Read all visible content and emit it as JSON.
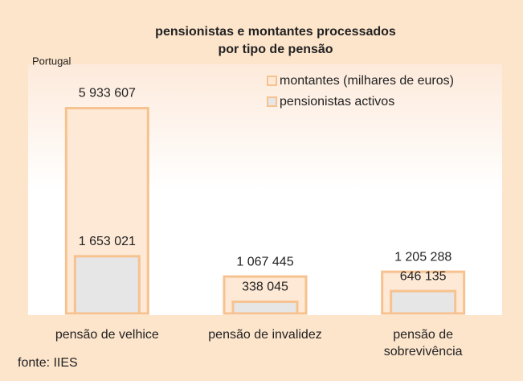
{
  "chart_data": {
    "type": "overlap-bar",
    "title": "pensionistas e montantes processados",
    "subtitle": "por tipo de pensão",
    "region": "Portugal",
    "source": "fonte: IIES",
    "categories": [
      "pensão de velhice",
      "pensão de invalidez",
      "pensão de sobrevivência"
    ],
    "ylim": [
      0,
      7200000
    ],
    "series": [
      {
        "name": "montantes (milhares de euros)",
        "color": "#fde9d5",
        "edge": "#f7c28f",
        "values": [
          5933607,
          1067445,
          1205288
        ],
        "value_labels": [
          "5 933 607",
          "1 067 445",
          "1 205 288"
        ]
      },
      {
        "name": "pensionistas activos",
        "color": "#e6e6e6",
        "edge": "#f7c28f",
        "values": [
          1653021,
          338045,
          646135
        ],
        "value_labels": [
          "1 653 021",
          "338 045",
          "646 135"
        ]
      }
    ]
  }
}
